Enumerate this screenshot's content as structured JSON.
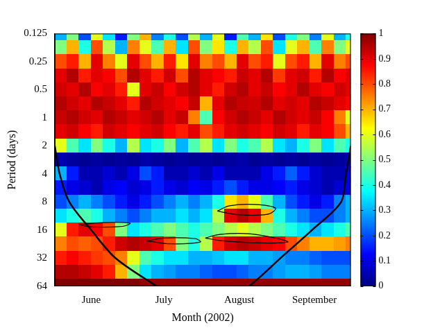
{
  "chart_data": {
    "type": "heatmap",
    "x_label": "Month (2002)",
    "y_label": "Period (days)",
    "log": "y",
    "grid": false,
    "xlim": [
      0,
      122
    ],
    "xticks": [
      {
        "value": 15,
        "label": "June"
      },
      {
        "value": 45,
        "label": "July"
      },
      {
        "value": 76,
        "label": "August"
      },
      {
        "value": 107,
        "label": "September"
      }
    ],
    "ylim": [
      0.125,
      64
    ],
    "yticks": [
      0.125,
      0.25,
      0.5,
      1,
      2,
      4,
      8,
      16,
      32,
      64
    ],
    "x": [
      2.5,
      7.5,
      12.5,
      17.5,
      22.5,
      27.5,
      32.5,
      37.5,
      42.5,
      47.5,
      52.5,
      57.5,
      62.5,
      67.5,
      72.5,
      77.5,
      82.5,
      87.5,
      92.5,
      97.5,
      102.5,
      107.5,
      112.5,
      117.5,
      122.5
    ],
    "y": [
      0.125,
      0.177,
      0.25,
      0.354,
      0.5,
      0.707,
      1,
      1.414,
      2,
      2.828,
      4,
      5.657,
      8,
      11.31,
      16,
      22.63,
      32,
      45.25,
      64
    ],
    "cells": [
      [
        0.3,
        0.5,
        0.2,
        0.6,
        0.35,
        0.15,
        0.5,
        0.7,
        0.25,
        0.4,
        0.2,
        0.55,
        0.3,
        0.6,
        0.15,
        0.45,
        0.3,
        0.65,
        0.2,
        0.4,
        0.5,
        0.25,
        0.6,
        0.3,
        0.4
      ],
      [
        0.5,
        0.7,
        0.4,
        0.8,
        0.55,
        0.3,
        0.75,
        0.6,
        0.45,
        0.7,
        0.35,
        0.8,
        0.5,
        0.65,
        0.4,
        0.7,
        0.55,
        0.8,
        0.35,
        0.6,
        0.7,
        0.45,
        0.75,
        0.5,
        0.6
      ],
      [
        0.8,
        0.85,
        0.7,
        0.9,
        0.75,
        0.6,
        0.9,
        0.8,
        0.7,
        0.85,
        0.65,
        0.9,
        0.75,
        0.8,
        0.7,
        0.9,
        0.8,
        0.85,
        0.6,
        0.8,
        0.85,
        0.7,
        0.9,
        0.75,
        0.8
      ],
      [
        0.9,
        0.95,
        0.85,
        0.9,
        0.88,
        0.8,
        0.95,
        0.9,
        0.85,
        0.92,
        0.8,
        0.95,
        0.9,
        0.88,
        0.85,
        0.93,
        0.9,
        0.95,
        0.82,
        0.9,
        0.92,
        0.85,
        0.95,
        0.88,
        0.9
      ],
      [
        0.92,
        0.9,
        0.95,
        0.88,
        0.9,
        0.85,
        0.6,
        0.9,
        0.93,
        0.88,
        0.92,
        0.95,
        0.9,
        0.85,
        0.92,
        0.95,
        0.9,
        0.93,
        0.88,
        0.9,
        0.95,
        0.9,
        0.88,
        0.92,
        0.9
      ],
      [
        0.95,
        0.92,
        0.9,
        0.95,
        0.93,
        0.9,
        0.85,
        0.95,
        0.92,
        0.9,
        0.88,
        0.93,
        0.7,
        0.9,
        0.95,
        0.93,
        0.92,
        0.95,
        0.9,
        0.92,
        0.9,
        0.95,
        0.93,
        0.9,
        0.88
      ],
      [
        0.93,
        0.95,
        0.92,
        0.9,
        0.95,
        0.93,
        0.9,
        0.92,
        0.95,
        0.9,
        0.93,
        0.75,
        0.45,
        0.88,
        0.92,
        0.95,
        0.93,
        0.9,
        0.95,
        0.92,
        0.9,
        0.93,
        0.88,
        0.75,
        0.6
      ],
      [
        0.9,
        0.92,
        0.88,
        0.85,
        0.92,
        0.9,
        0.88,
        0.9,
        0.92,
        0.88,
        0.85,
        0.9,
        0.8,
        0.85,
        0.9,
        0.92,
        0.9,
        0.88,
        0.92,
        0.9,
        0.85,
        0.9,
        0.88,
        0.8,
        0.7
      ],
      [
        0.6,
        0.45,
        0.35,
        0.5,
        0.4,
        0.3,
        0.55,
        0.35,
        0.4,
        0.5,
        0.3,
        0.45,
        0.55,
        0.35,
        0.5,
        0.4,
        0.45,
        0.55,
        0.35,
        0.3,
        0.4,
        0.5,
        0.35,
        0.45,
        0.4
      ],
      [
        0.05,
        0.03,
        0.02,
        0.03,
        0.02,
        0.03,
        0.02,
        0.04,
        0.03,
        0.02,
        0.03,
        0.02,
        0.03,
        0.02,
        0.03,
        0.04,
        0.02,
        0.03,
        0.02,
        0.03,
        0.02,
        0.03,
        0.02,
        0.03,
        0.05
      ],
      [
        0.3,
        0.15,
        0.05,
        0.05,
        0.08,
        0.05,
        0.1,
        0.2,
        0.15,
        0.05,
        0.05,
        0.08,
        0.05,
        0.1,
        0.05,
        0.05,
        0.05,
        0.1,
        0.15,
        0.22,
        0.15,
        0.08,
        0.05,
        0.05,
        0.1
      ],
      [
        0.15,
        0.1,
        0.08,
        0.05,
        0.1,
        0.12,
        0.08,
        0.1,
        0.15,
        0.1,
        0.08,
        0.12,
        0.1,
        0.15,
        0.2,
        0.15,
        0.1,
        0.1,
        0.12,
        0.15,
        0.1,
        0.08,
        0.05,
        0.08,
        0.1
      ],
      [
        0.2,
        0.25,
        0.3,
        0.25,
        0.2,
        0.15,
        0.1,
        0.15,
        0.2,
        0.25,
        0.3,
        0.25,
        0.3,
        0.4,
        0.65,
        0.7,
        0.6,
        0.45,
        0.3,
        0.2,
        0.15,
        0.1,
        0.15,
        0.25,
        0.3
      ],
      [
        0.35,
        0.4,
        0.45,
        0.4,
        0.3,
        0.25,
        0.2,
        0.25,
        0.3,
        0.3,
        0.35,
        0.3,
        0.35,
        0.55,
        0.9,
        0.95,
        0.9,
        0.7,
        0.4,
        0.3,
        0.25,
        0.2,
        0.2,
        0.25,
        0.3
      ],
      [
        0.6,
        0.85,
        0.9,
        0.88,
        0.8,
        0.5,
        0.35,
        0.4,
        0.45,
        0.5,
        0.45,
        0.4,
        0.45,
        0.5,
        0.55,
        0.6,
        0.55,
        0.5,
        0.45,
        0.4,
        0.35,
        0.3,
        0.35,
        0.4,
        0.45
      ],
      [
        0.75,
        0.8,
        0.78,
        0.8,
        0.85,
        0.92,
        0.95,
        0.93,
        0.9,
        0.8,
        0.5,
        0.4,
        0.55,
        0.85,
        0.92,
        0.95,
        0.93,
        0.9,
        0.88,
        0.8,
        0.75,
        0.7,
        0.7,
        0.72,
        0.75
      ],
      [
        0.85,
        0.88,
        0.85,
        0.82,
        0.8,
        0.75,
        0.6,
        0.45,
        0.4,
        0.35,
        0.35,
        0.3,
        0.3,
        0.32,
        0.35,
        0.35,
        0.3,
        0.3,
        0.28,
        0.25,
        0.25,
        0.22,
        0.2,
        0.2,
        0.2
      ],
      [
        0.95,
        0.95,
        0.93,
        0.9,
        0.85,
        0.7,
        0.5,
        0.35,
        0.3,
        0.28,
        0.25,
        0.25,
        0.22,
        0.2,
        0.2,
        0.22,
        0.25,
        0.25,
        0.28,
        0.3,
        0.3,
        0.28,
        0.25,
        0.25,
        0.25
      ],
      [
        1,
        1,
        1,
        1,
        1,
        1,
        1,
        0.98,
        0.98,
        0.98,
        0.98,
        0.98,
        0.98,
        0.98,
        0.98,
        0.98,
        0.98,
        0.98,
        0.98,
        0.98,
        0.98,
        0.98,
        0.98,
        0.98,
        0.98
      ]
    ],
    "colorbar": {
      "range": [
        0,
        1
      ],
      "ticks": [
        0,
        0.1,
        0.2,
        0.3,
        0.4,
        0.5,
        0.6,
        0.7,
        0.8,
        0.9,
        1
      ]
    },
    "cone_of_influence": {
      "x": [
        0,
        2,
        6,
        15,
        25,
        42,
        61,
        80,
        93,
        106,
        118,
        120,
        122
      ],
      "y": [
        2,
        4,
        8,
        16,
        32,
        64,
        128,
        64,
        32,
        16,
        8,
        4,
        2
      ]
    },
    "contours": [
      {
        "x": [
          67,
          72,
          82,
          91,
          88,
          76,
          67
        ],
        "y": [
          10,
          8.8,
          8.5,
          9.3,
          10.8,
          11,
          10
        ]
      },
      {
        "x": [
          62,
          68,
          80,
          92,
          96,
          84,
          70,
          62
        ],
        "y": [
          19.5,
          17.8,
          17.5,
          19.8,
          21.5,
          22,
          21,
          19.5
        ]
      },
      {
        "x": [
          38,
          45,
          58,
          60,
          48,
          38
        ],
        "y": [
          21,
          19.5,
          19.8,
          21.5,
          22.5,
          21
        ]
      },
      {
        "x": [
          10,
          20,
          31,
          28,
          15,
          10
        ],
        "y": [
          14,
          13.3,
          13.5,
          14.6,
          14.8,
          14
        ]
      }
    ]
  }
}
